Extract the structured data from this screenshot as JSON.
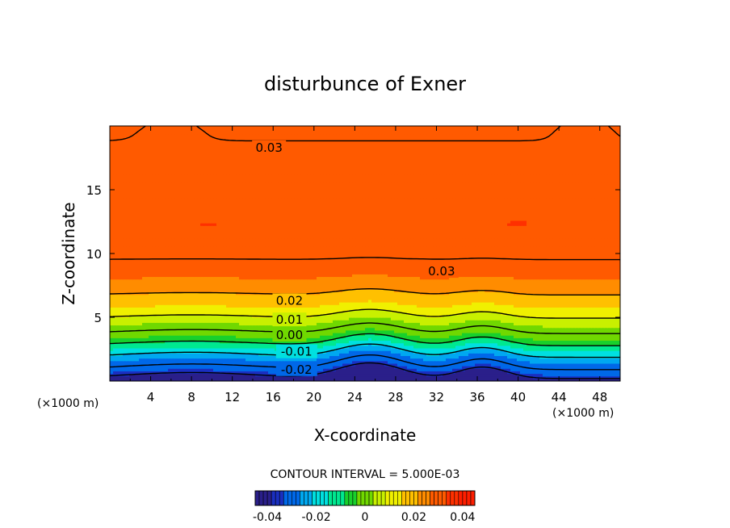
{
  "chart_data": {
    "type": "contour",
    "title": "disturbunce of Exner",
    "xlabel": "X-coordinate",
    "ylabel": "Z-coordinate",
    "x_unit": "(×1000 m)",
    "xlim": [
      0,
      50
    ],
    "ylim": [
      0,
      20
    ],
    "x_ticks": [
      4,
      8,
      12,
      16,
      20,
      24,
      28,
      32,
      36,
      40,
      44,
      48
    ],
    "y_ticks": [
      5,
      10,
      15
    ],
    "contour_interval_text": "CONTOUR INTERVAL = 5.000E-03",
    "contour_interval": 0.005,
    "value_range": [
      -0.045,
      0.045
    ],
    "colorbar_ticks": [
      "-0.04",
      "-0.02",
      "0",
      "0.02",
      "0.04"
    ],
    "contour_labels": [
      {
        "text": "0.03",
        "x": 15.6,
        "z": 18.3
      },
      {
        "text": "0.03",
        "x": 32.5,
        "z": 8.6
      },
      {
        "text": "0.02",
        "x": 17.6,
        "z": 6.3
      },
      {
        "text": "0.01",
        "x": 17.6,
        "z": 4.8
      },
      {
        "text": "0.00",
        "x": 17.6,
        "z": 3.6
      },
      {
        "text": "-0.01",
        "x": 18.3,
        "z": 2.3
      },
      {
        "text": "-0.02",
        "x": 18.3,
        "z": 0.9
      }
    ],
    "profile_mean": [
      [
        0.0,
        -0.044
      ],
      [
        0.5,
        -0.034
      ],
      [
        1.5,
        -0.024
      ],
      [
        2.5,
        -0.013
      ],
      [
        3.5,
        -0.002
      ],
      [
        4.5,
        0.007
      ],
      [
        5.5,
        0.014
      ],
      [
        6.5,
        0.019
      ],
      [
        7.5,
        0.023
      ],
      [
        8.5,
        0.027
      ],
      [
        9.5,
        0.03
      ],
      [
        11.0,
        0.033
      ],
      [
        12.5,
        0.034
      ],
      [
        14.0,
        0.033
      ],
      [
        15.5,
        0.0322
      ],
      [
        17.0,
        0.0312
      ],
      [
        18.5,
        0.0302
      ],
      [
        19.5,
        0.0296
      ],
      [
        20.0,
        0.0292
      ]
    ],
    "features": [
      {
        "kind": "ridge",
        "x": 25.5,
        "width": 4.2,
        "amplitude": 1.4
      },
      {
        "kind": "ridge",
        "x": 36.5,
        "width": 3.2,
        "amplitude": 1.0
      },
      {
        "kind": "ridge",
        "x": 8.0,
        "width": 9.0,
        "amplitude": 0.5
      },
      {
        "kind": "max",
        "x": 9.6,
        "z": 12.3,
        "sx": 3.0,
        "sz": 0.6,
        "amplitude": 0.0012
      },
      {
        "kind": "max",
        "x": 21.5,
        "z": 12.2,
        "sx": 6.0,
        "sz": 1.0,
        "amplitude": 0.001
      },
      {
        "kind": "max",
        "x": 40.0,
        "z": 12.2,
        "sx": 5.0,
        "sz": 1.0,
        "amplitude": 0.0012
      },
      {
        "kind": "min",
        "x": 30.8,
        "z": 12.2,
        "sx": 1.1,
        "sz": 1.4,
        "amplitude": 0.0014
      },
      {
        "kind": "bump",
        "x": 6.0,
        "z": 20.0,
        "sx": 3.0,
        "sz": 1.4,
        "amplitude": 0.0016
      },
      {
        "kind": "bump",
        "x": 46.5,
        "z": 20.0,
        "sx": 2.6,
        "sz": 1.4,
        "amplitude": 0.0018
      }
    ],
    "colors": {
      "palette": [
        "#2a1f8a",
        "#1a2fc0",
        "#0068e8",
        "#00a8f0",
        "#00e0e0",
        "#00e890",
        "#18d02c",
        "#70d800",
        "#c8f000",
        "#f0f000",
        "#ffc000",
        "#ff8c00",
        "#ff5a00",
        "#ff3000",
        "#ff1e00"
      ],
      "negative_line_style": "dashed",
      "line_color": "#000000"
    }
  }
}
